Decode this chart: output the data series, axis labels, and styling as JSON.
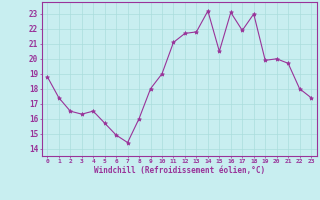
{
  "x": [
    0,
    1,
    2,
    3,
    4,
    5,
    6,
    7,
    8,
    9,
    10,
    11,
    12,
    13,
    14,
    15,
    16,
    17,
    18,
    19,
    20,
    21,
    22,
    23
  ],
  "y": [
    18.8,
    17.4,
    16.5,
    16.3,
    16.5,
    15.7,
    14.9,
    14.4,
    16.0,
    18.0,
    19.0,
    21.1,
    21.7,
    21.8,
    23.2,
    20.5,
    23.1,
    21.9,
    23.0,
    19.9,
    20.0,
    19.7,
    18.0,
    17.4
  ],
  "line_color": "#993399",
  "marker": "*",
  "marker_size": 3,
  "bg_color": "#c8eef0",
  "grid_color": "#aadddd",
  "xlabel": "Windchill (Refroidissement éolien,°C)",
  "ylabel_ticks": [
    14,
    15,
    16,
    17,
    18,
    19,
    20,
    21,
    22,
    23
  ],
  "xlim": [
    -0.5,
    23.5
  ],
  "ylim": [
    13.5,
    23.8
  ],
  "xticks": [
    0,
    1,
    2,
    3,
    4,
    5,
    6,
    7,
    8,
    9,
    10,
    11,
    12,
    13,
    14,
    15,
    16,
    17,
    18,
    19,
    20,
    21,
    22,
    23
  ],
  "tick_color": "#993399",
  "label_color": "#993399"
}
